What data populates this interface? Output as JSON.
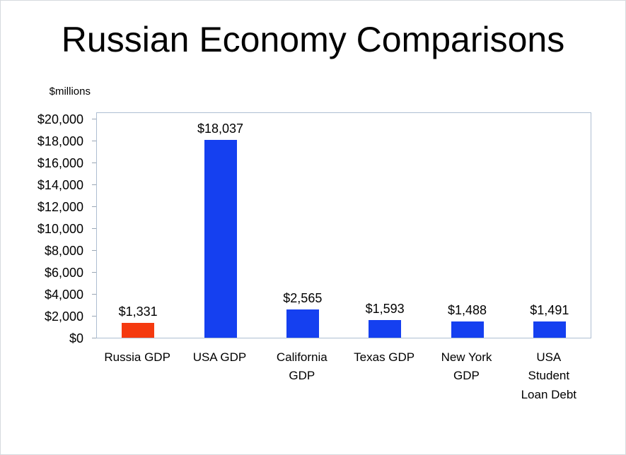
{
  "chart_data": {
    "type": "bar",
    "title": "Russian Economy Comparisons",
    "units_label": "$millions",
    "categories": [
      "Russia GDP",
      "USA GDP",
      "California GDP",
      "Texas GDP",
      "New York GDP",
      "USA Student Loan Debt"
    ],
    "categories_display": [
      "Russia GDP",
      "USA GDP",
      "California\nGDP",
      "Texas GDP",
      "New York\nGDP",
      "USA\nStudent\nLoan Debt"
    ],
    "values": [
      1331,
      18037,
      2565,
      1593,
      1488,
      1491
    ],
    "value_labels": [
      "$1,331",
      "$18,037",
      "$2,565",
      "$1,593",
      "$1,488",
      "$1,491"
    ],
    "bar_colors": [
      "#f53a10",
      "#1540f0",
      "#1540f0",
      "#1540f0",
      "#1540f0",
      "#1540f0"
    ],
    "xlabel": "",
    "ylabel": "$millions",
    "ylim": [
      0,
      20000
    ],
    "ytick_step": 2000,
    "ytick_labels": [
      "$0",
      "$2,000",
      "$4,000",
      "$6,000",
      "$8,000",
      "$10,000",
      "$12,000",
      "$14,000",
      "$16,000",
      "$18,000",
      "$20,000"
    ],
    "grid": false,
    "legend": "none",
    "accent_red": "#f53a10",
    "accent_blue": "#1540f0"
  }
}
